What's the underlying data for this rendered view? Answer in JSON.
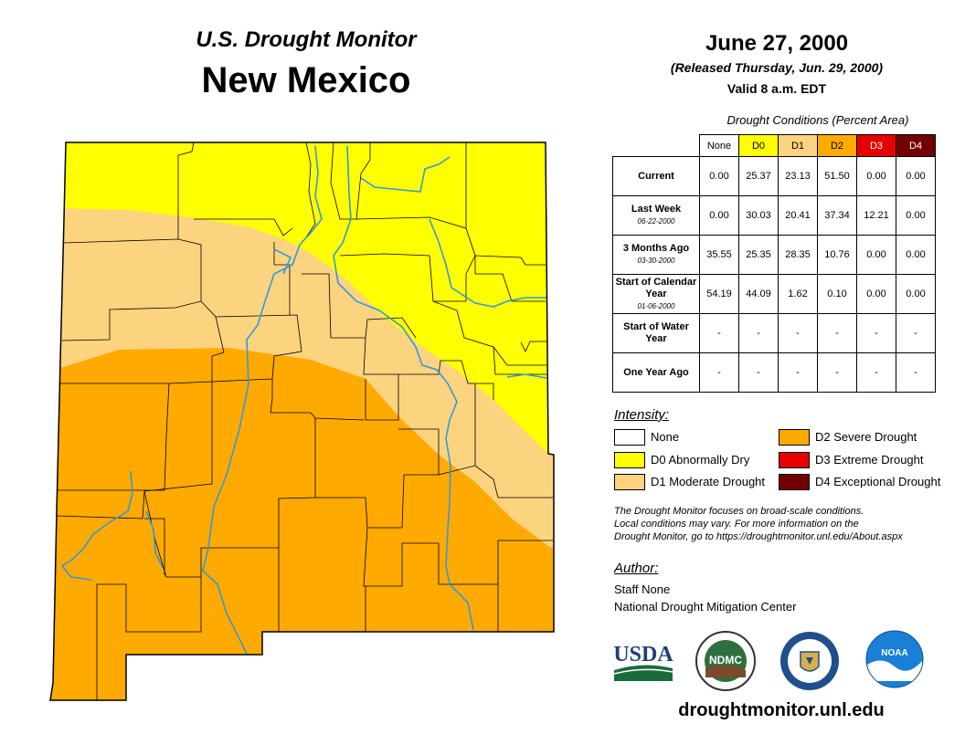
{
  "header": {
    "title": "U.S. Drought Monitor",
    "state": "New Mexico",
    "date": "June 27, 2000",
    "released": "(Released Thursday, Jun. 29, 2000)",
    "valid": "Valid 8 a.m. EDT"
  },
  "table": {
    "caption": "Drought Conditions (Percent Area)",
    "columns": [
      {
        "label": "None",
        "color": "#ffffff"
      },
      {
        "label": "D0",
        "color": "#ffff00"
      },
      {
        "label": "D1",
        "color": "#fcd37f"
      },
      {
        "label": "D2",
        "color": "#ffaa00"
      },
      {
        "label": "D3",
        "color": "#e60000"
      },
      {
        "label": "D4",
        "color": "#730000"
      }
    ],
    "rows": [
      {
        "label": "Current",
        "sub": "",
        "values": [
          "0.00",
          "25.37",
          "23.13",
          "51.50",
          "0.00",
          "0.00"
        ]
      },
      {
        "label": "Last Week",
        "sub": "06-22-2000",
        "values": [
          "0.00",
          "30.03",
          "20.41",
          "37.34",
          "12.21",
          "0.00"
        ]
      },
      {
        "label": "3 Months Ago",
        "sub": "03-30-2000",
        "values": [
          "35.55",
          "25.35",
          "28.35",
          "10.76",
          "0.00",
          "0.00"
        ]
      },
      {
        "label": "Start of Calendar Year",
        "sub": "01-06-2000",
        "values": [
          "54.19",
          "44.09",
          "1.62",
          "0.10",
          "0.00",
          "0.00"
        ]
      },
      {
        "label": "Start of Water Year",
        "sub": "",
        "values": [
          "-",
          "-",
          "-",
          "-",
          "-",
          "-"
        ]
      },
      {
        "label": "One Year Ago",
        "sub": "",
        "values": [
          "-",
          "-",
          "-",
          "-",
          "-",
          "-"
        ]
      }
    ]
  },
  "legend": {
    "title": "Intensity:",
    "items": [
      {
        "label": "None",
        "color": "#ffffff"
      },
      {
        "label": "D0 Abnormally Dry",
        "color": "#ffff00"
      },
      {
        "label": "D1 Moderate Drought",
        "color": "#fcd37f"
      },
      {
        "label": "D2 Severe Drought",
        "color": "#ffaa00"
      },
      {
        "label": "D3 Extreme Drought",
        "color": "#e60000"
      },
      {
        "label": "D4 Exceptional Drought",
        "color": "#730000"
      }
    ]
  },
  "note": {
    "line1": "The Drought Monitor focuses on broad-scale conditions.",
    "line2": "Local conditions may vary. For more information on the",
    "line3": "Drought Monitor, go to https://droughtmonitor.unl.edu/About.aspx"
  },
  "author": {
    "title": "Author:",
    "name": "Staff None",
    "org": "National Drought Mitigation Center"
  },
  "logos": {
    "usda": "USDA",
    "ndmc": "NDMC",
    "noaa": "NOAA"
  },
  "footer": {
    "url": "droughtmonitor.unl.edu"
  },
  "map": {
    "river_color": "#3399dd",
    "county_line_color": "#000000"
  }
}
